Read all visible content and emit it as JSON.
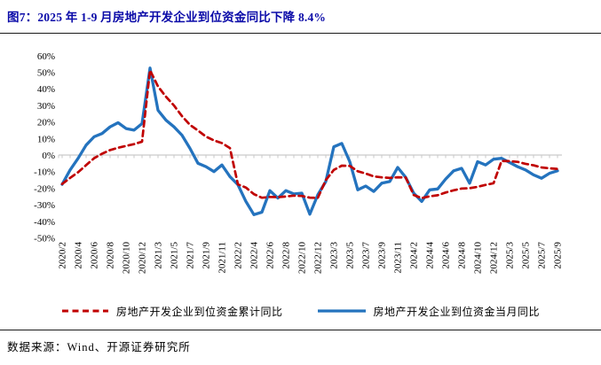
{
  "header": {
    "title": "图7：2025 年 1-9 月房地产开发企业到位资金同比下降 8.4%"
  },
  "footer": {
    "source": "数据来源：Wind、开源证券研究所"
  },
  "colors": {
    "title_navy": "#0a0aa8",
    "cumulative_red": "#C00000",
    "monthly_blue": "#2473BE",
    "axis_gray": "#C9C9C9",
    "rule_black": "#1a1a1a"
  },
  "chart_data": {
    "type": "line",
    "title": "2025 年 1-9 月房地产开发企业到位资金同比下降 8.4%",
    "y_unit": "%",
    "ylim": [
      -50,
      60
    ],
    "ytick_step": 10,
    "yticks": [
      "60%",
      "50%",
      "40%",
      "30%",
      "20%",
      "10%",
      "0%",
      "-10%",
      "-20%",
      "-30%",
      "-40%",
      "-50%"
    ],
    "grid": false,
    "legend_position": "bottom",
    "xtick_every": 2,
    "x": [
      "2020/2",
      "2020/3",
      "2020/4",
      "2020/5",
      "2020/6",
      "2020/7",
      "2020/8",
      "2020/9",
      "2020/10",
      "2020/11",
      "2020/12",
      "2021/2",
      "2021/3",
      "2021/4",
      "2021/5",
      "2021/6",
      "2021/7",
      "2021/8",
      "2021/9",
      "2021/10",
      "2021/11",
      "2021/12",
      "2022/2",
      "2022/3",
      "2022/4",
      "2022/5",
      "2022/6",
      "2022/7",
      "2022/8",
      "2022/9",
      "2022/10",
      "2022/11",
      "2022/12",
      "2023/2",
      "2023/3",
      "2023/4",
      "2023/5",
      "2023/6",
      "2023/7",
      "2023/8",
      "2023/9",
      "2023/10",
      "2023/11",
      "2023/12",
      "2024/2",
      "2024/3",
      "2024/4",
      "2024/5",
      "2024/6",
      "2024/7",
      "2024/8",
      "2024/9",
      "2024/10",
      "2024/11",
      "2024/12",
      "2025/2",
      "2025/3",
      "2025/4",
      "2025/5",
      "2025/6",
      "2025/7",
      "2025/8",
      "2025/9"
    ],
    "series": [
      {
        "name": "房地产开发企业到位资金累计同比",
        "color": "#C00000",
        "line_style": "dashed",
        "values": [
          -17.5,
          -13.8,
          -10.4,
          -6.1,
          -1.9,
          0.8,
          3.0,
          4.4,
          5.5,
          6.6,
          8.1,
          51.2,
          41.4,
          35.2,
          29.9,
          23.5,
          18.2,
          14.8,
          11.1,
          8.8,
          7.2,
          4.2,
          -17.7,
          -19.6,
          -23.6,
          -25.8,
          -25.3,
          -25.4,
          -25.0,
          -24.5,
          -24.7,
          -25.7,
          -25.9,
          -15.2,
          -9.0,
          -6.4,
          -6.6,
          -9.8,
          -11.2,
          -12.9,
          -13.5,
          -13.8,
          -13.4,
          -13.6,
          -24.1,
          -26.0,
          -24.9,
          -24.3,
          -22.6,
          -21.3,
          -20.2,
          -20.0,
          -19.2,
          -18.0,
          -17.0,
          -3.6,
          -3.7,
          -4.1,
          -5.3,
          -6.2,
          -7.5,
          -8.0,
          -8.4
        ]
      },
      {
        "name": "房地产开发企业到位资金当月同比",
        "color": "#2473BE",
        "line_style": "solid",
        "values": [
          -17.7,
          -9,
          -2,
          6,
          11,
          13,
          17,
          19.5,
          16,
          15,
          19,
          52.5,
          27,
          21,
          17,
          12,
          4,
          -5,
          -7,
          -10,
          -6,
          -13,
          -17.9,
          -28,
          -36,
          -34.5,
          -21.5,
          -26,
          -21.5,
          -23.5,
          -23,
          -35.7,
          -24,
          -16,
          5,
          7,
          -4,
          -21,
          -18.7,
          -22,
          -17,
          -16,
          -7.5,
          -13.5,
          -23,
          -28,
          -21,
          -20.5,
          -14.5,
          -9.5,
          -8,
          -17,
          -4,
          -6,
          -2.5,
          -2,
          -4.5,
          -7,
          -9,
          -12,
          -14,
          -11,
          -9.5
        ]
      }
    ]
  }
}
